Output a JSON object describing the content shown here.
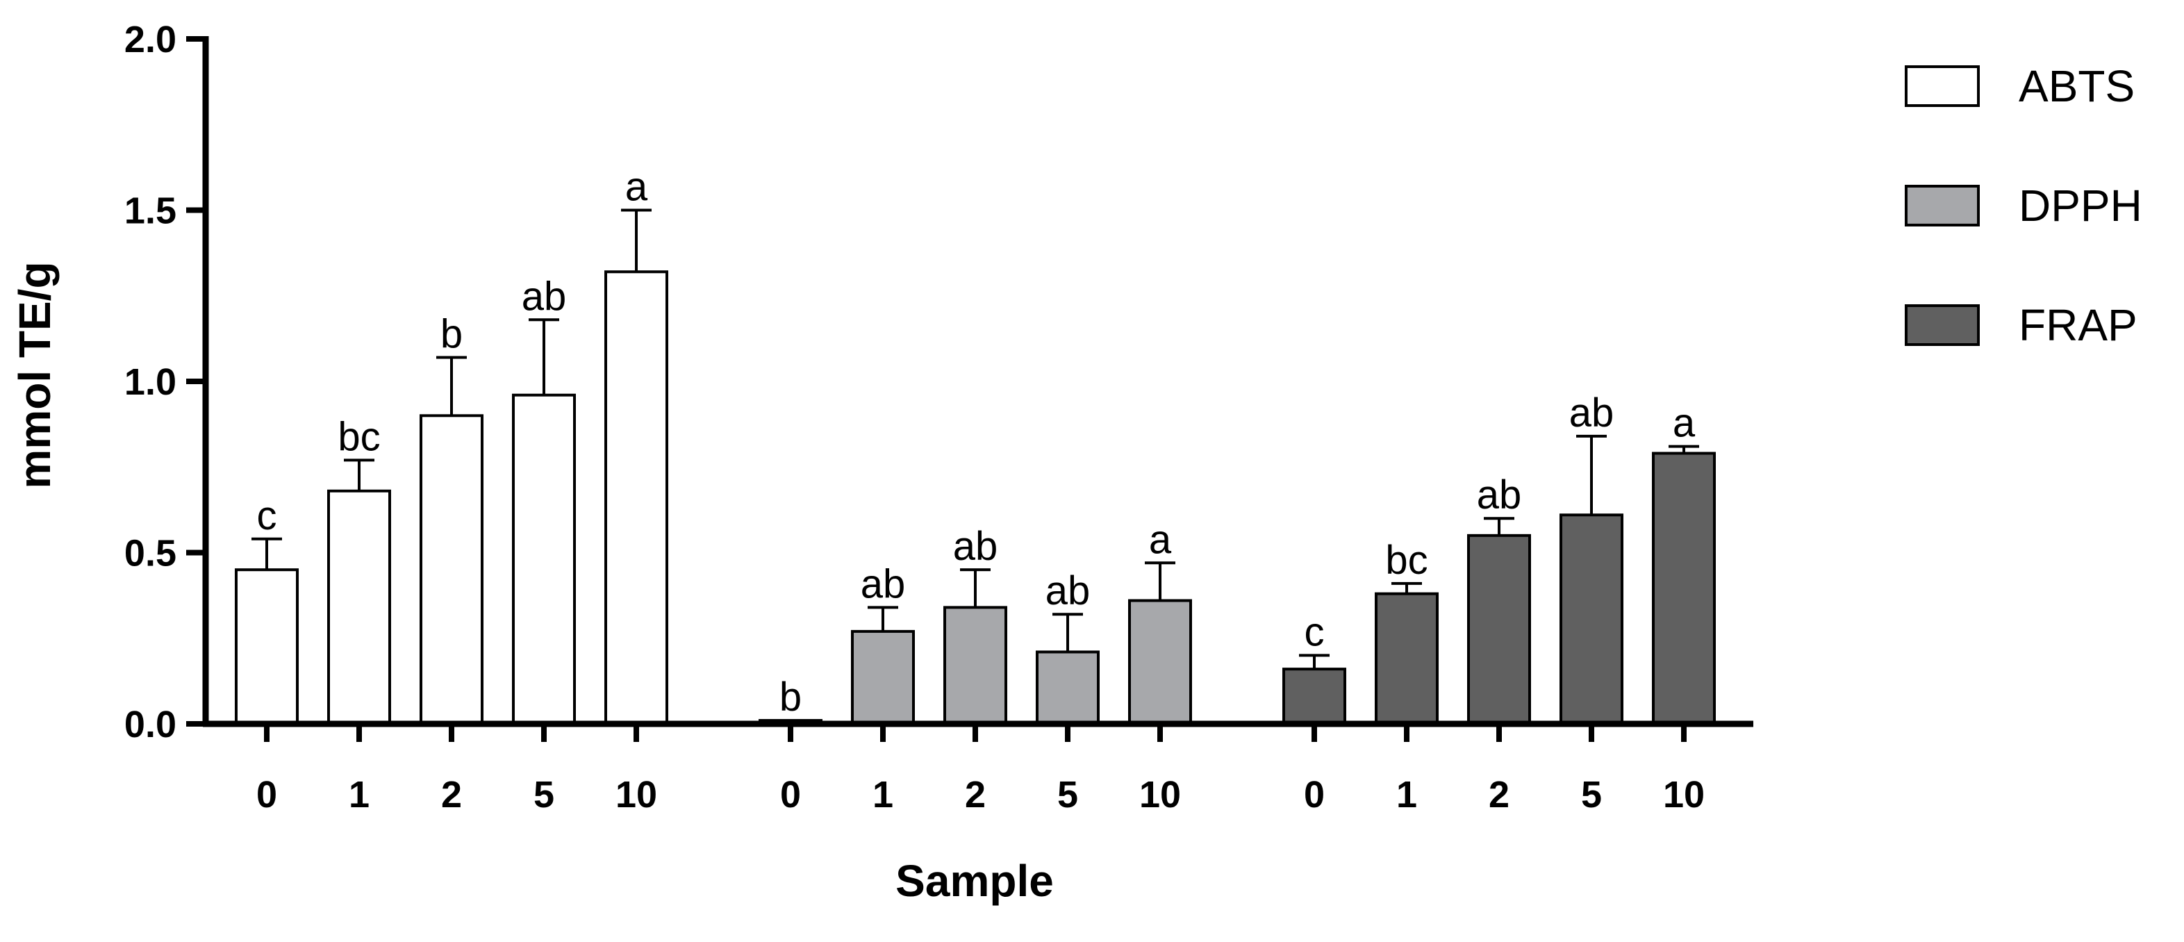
{
  "chart_data": {
    "type": "bar",
    "xlabel": "Sample",
    "ylabel": "mmol TE/g",
    "ylim": [
      0,
      2.0
    ],
    "yticks": [
      "0.0",
      "0.5",
      "1.0",
      "1.5",
      "2.0"
    ],
    "categories": [
      "0",
      "1",
      "2",
      "5",
      "10"
    ],
    "legend_position": "top-right",
    "grid": false,
    "series": [
      {
        "name": "ABTS",
        "color": "#ffffff",
        "values": [
          0.45,
          0.68,
          0.9,
          0.96,
          1.32
        ],
        "errors": [
          0.09,
          0.09,
          0.17,
          0.22,
          0.18
        ],
        "labels": [
          "c",
          "bc",
          "b",
          "ab",
          "a"
        ]
      },
      {
        "name": "DPPH",
        "color": "#a7a8ab",
        "values": [
          0.01,
          0.27,
          0.34,
          0.21,
          0.36
        ],
        "errors": [
          0.0,
          0.07,
          0.11,
          0.11,
          0.11
        ],
        "labels": [
          "b",
          "ab",
          "ab",
          "ab",
          "a"
        ]
      },
      {
        "name": "FRAP",
        "color": "#606060",
        "values": [
          0.16,
          0.38,
          0.55,
          0.61,
          0.79
        ],
        "errors": [
          0.04,
          0.03,
          0.05,
          0.23,
          0.02
        ],
        "labels": [
          "c",
          "bc",
          "ab",
          "ab",
          "a"
        ]
      }
    ]
  }
}
